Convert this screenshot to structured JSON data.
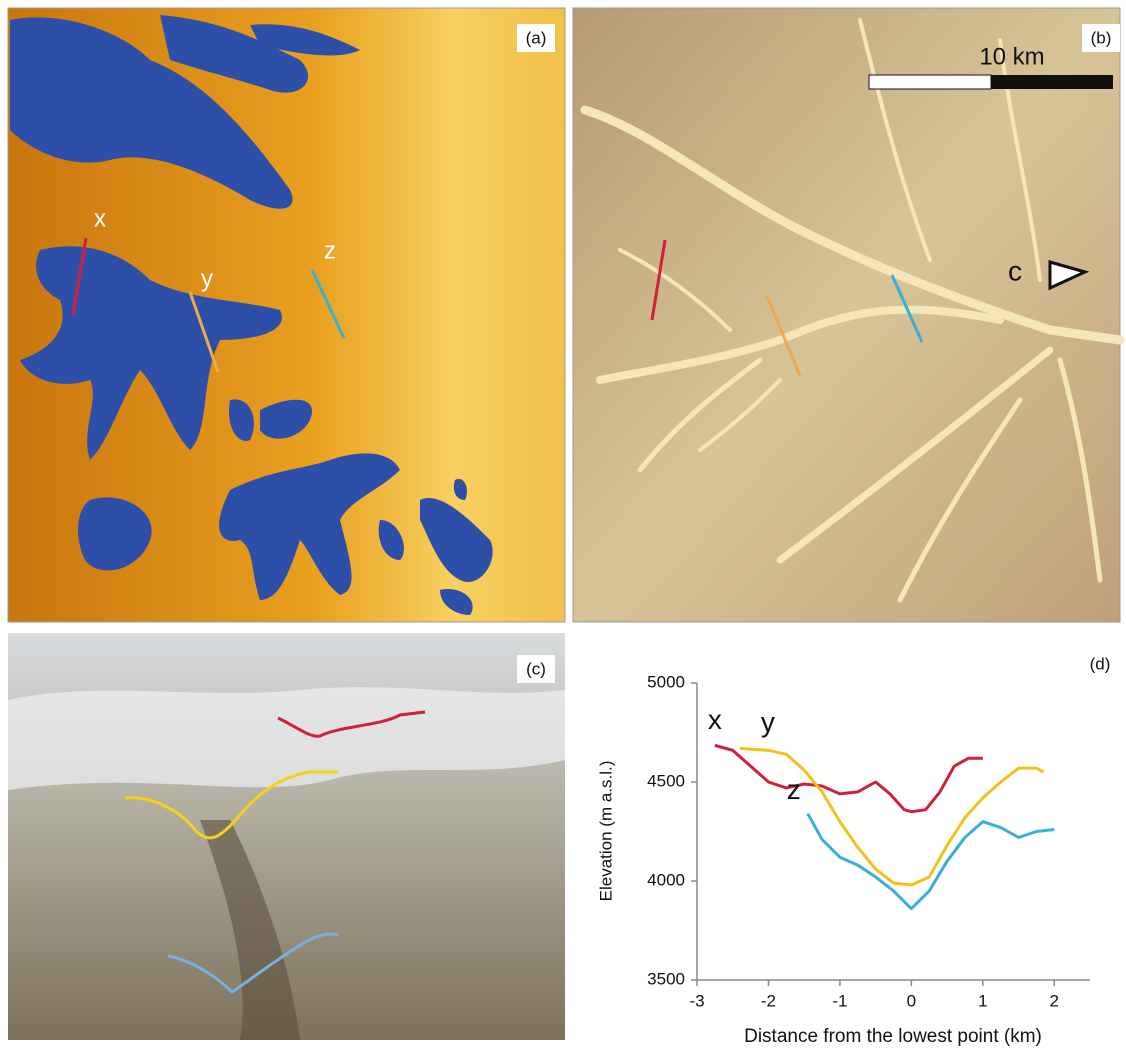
{
  "panels": [
    {
      "label": "(a)",
      "profiles": [
        "x",
        "y",
        "z"
      ]
    },
    {
      "label": "(b)",
      "scale": "10 km",
      "viewpoint": "c"
    },
    {
      "label": "(c)"
    }
  ],
  "chart_data": {
    "type": "line",
    "panel_label": "(d)",
    "x_label": "Distance from the lowest point (km)",
    "y_label": "Elevation (m a.s.l.)",
    "xlim": [
      -3,
      2.5
    ],
    "xticks": [
      -3,
      -2,
      -1,
      0,
      1,
      2
    ],
    "ylim": [
      3500,
      5000
    ],
    "yticks": [
      3500,
      4000,
      4500,
      5000
    ],
    "grid": false,
    "series": [
      {
        "name": "x",
        "color": "#d0203a",
        "x": [
          -2.75,
          -2.5,
          -2.25,
          -2,
          -1.75,
          -1.5,
          -1.25,
          -1,
          -0.75,
          -0.5,
          -0.3,
          -0.1,
          0,
          0.2,
          0.4,
          0.6,
          0.8,
          1
        ],
        "values": [
          4685,
          4660,
          4580,
          4500,
          4470,
          4490,
          4480,
          4440,
          4450,
          4500,
          4440,
          4360,
          4350,
          4360,
          4450,
          4580,
          4620,
          4620
        ]
      },
      {
        "name": "y",
        "color": "#f2c21b",
        "x": [
          -2.4,
          -2,
          -1.75,
          -1.5,
          -1.25,
          -1,
          -0.75,
          -0.5,
          -0.25,
          0,
          0.25,
          0.5,
          0.75,
          1,
          1.25,
          1.5,
          1.75,
          1.85
        ],
        "values": [
          4670,
          4660,
          4640,
          4560,
          4450,
          4300,
          4170,
          4060,
          3990,
          3980,
          4020,
          4180,
          4320,
          4420,
          4500,
          4570,
          4570,
          4550
        ]
      },
      {
        "name": "z",
        "color": "#3aaed8",
        "x": [
          -1.45,
          -1.25,
          -1,
          -0.75,
          -0.5,
          -0.25,
          0,
          0.25,
          0.5,
          0.75,
          1,
          1.25,
          1.5,
          1.75,
          2
        ],
        "values": [
          4340,
          4210,
          4120,
          4080,
          4020,
          3950,
          3860,
          3950,
          4100,
          4220,
          4300,
          4270,
          4220,
          4250,
          4260
        ]
      }
    ]
  }
}
